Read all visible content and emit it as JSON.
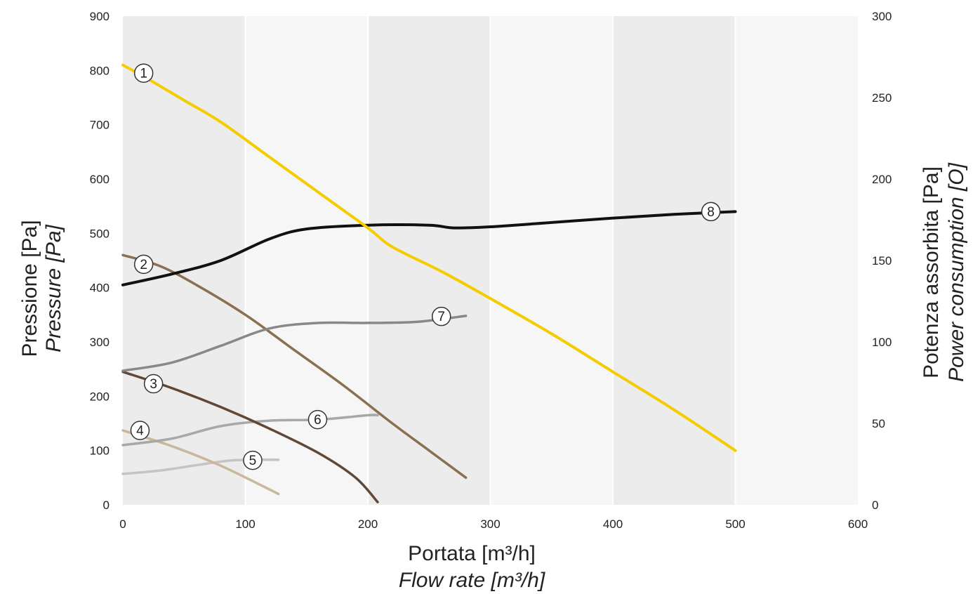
{
  "chart_data": {
    "type": "line",
    "xlabel": "Portata [m³/h]",
    "xlabel_sub": "Flow rate [m³/h]",
    "ylabel": "Pressione [Pa]",
    "ylabel_sub": "Pressure [Pa]",
    "y2label": "Potenza assorbita [Pa]",
    "y2label_sub": "Power consumption [O]",
    "xlim": [
      0,
      600
    ],
    "ylim": [
      0,
      900
    ],
    "y2lim": [
      0,
      300
    ],
    "x_ticks": [
      "0",
      "100",
      "200",
      "300",
      "400",
      "500",
      "600"
    ],
    "y_ticks": [
      "0",
      "100",
      "200",
      "300",
      "400",
      "500",
      "600",
      "700",
      "800",
      "900"
    ],
    "y2_ticks": [
      "0",
      "50",
      "100",
      "150",
      "200",
      "250",
      "300"
    ],
    "grid": "vertical bands",
    "series": [
      {
        "name": "1",
        "color": "#f5cc00",
        "axis": "left",
        "x": [
          0,
          20,
          50,
          80,
          120,
          160,
          200,
          220,
          260,
          300,
          350,
          400,
          450,
          500
        ],
        "y": [
          810,
          785,
          745,
          705,
          640,
          575,
          510,
          475,
          430,
          380,
          315,
          245,
          175,
          100
        ],
        "label_x": 17,
        "label_y": 795
      },
      {
        "name": "2",
        "color": "#8a7050",
        "axis": "left",
        "x": [
          0,
          30,
          60,
          100,
          140,
          180,
          220,
          250,
          280
        ],
        "y": [
          460,
          440,
          405,
          350,
          285,
          220,
          150,
          100,
          50
        ],
        "label_x": 17,
        "label_y": 443
      },
      {
        "name": "3",
        "color": "#604838",
        "axis": "left",
        "x": [
          0,
          40,
          80,
          120,
          160,
          190,
          208
        ],
        "y": [
          245,
          215,
          180,
          140,
          95,
          50,
          5
        ],
        "label_x": 25,
        "label_y": 223
      },
      {
        "name": "4",
        "color": "#c9b79a",
        "axis": "left",
        "x": [
          0,
          40,
          80,
          127
        ],
        "y": [
          137,
          108,
          72,
          20
        ],
        "label_x": 14,
        "label_y": 137
      },
      {
        "name": "5",
        "color": "#c4c4c4",
        "axis": "left",
        "x": [
          0,
          30,
          60,
          90,
          127
        ],
        "y": [
          57,
          63,
          73,
          82,
          83
        ],
        "label_x": 106,
        "label_y": 82
      },
      {
        "name": "6",
        "color": "#a8a8a8",
        "axis": "left",
        "x": [
          0,
          40,
          80,
          120,
          160,
          200,
          208
        ],
        "y": [
          110,
          122,
          145,
          155,
          157,
          165,
          165
        ],
        "label_x": 159,
        "label_y": 157
      },
      {
        "name": "7",
        "color": "#888888",
        "axis": "left",
        "x": [
          0,
          40,
          80,
          120,
          160,
          200,
          240,
          280
        ],
        "y": [
          247,
          262,
          293,
          325,
          335,
          335,
          337,
          348
        ],
        "label_x": 260,
        "label_y": 347
      },
      {
        "name": "8",
        "color": "#111111",
        "axis": "left",
        "x": [
          0,
          40,
          80,
          120,
          150,
          200,
          250,
          270,
          300,
          350,
          400,
          450,
          500
        ],
        "y": [
          405,
          425,
          450,
          490,
          508,
          515,
          515,
          510,
          512,
          520,
          528,
          535,
          540
        ],
        "label_x": 480,
        "label_y": 540
      }
    ]
  }
}
